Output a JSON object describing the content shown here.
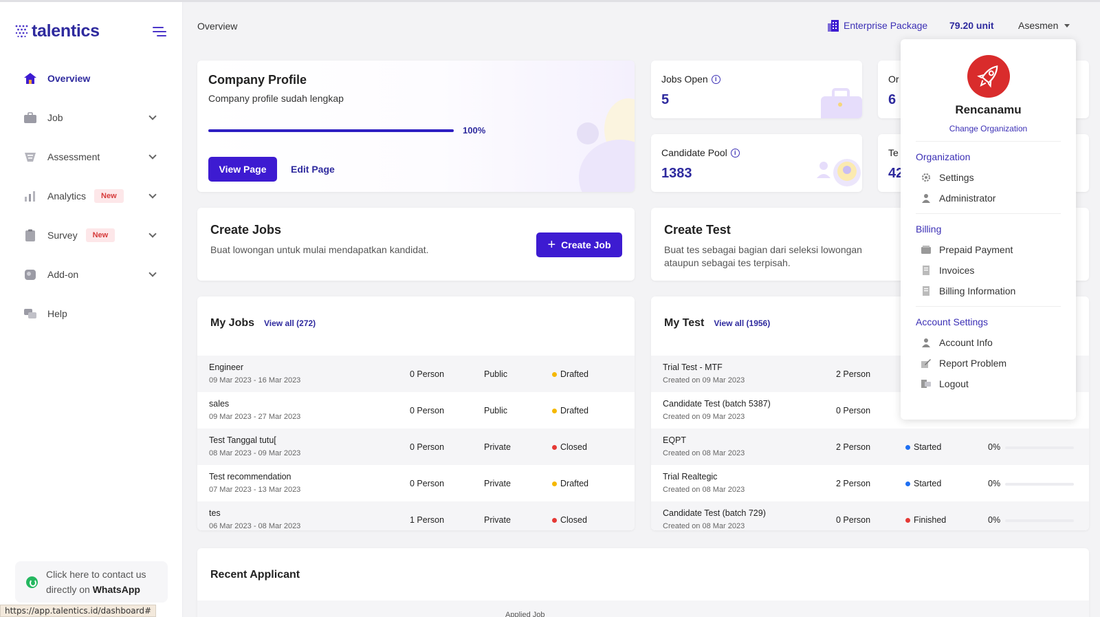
{
  "app": {
    "brand": "talentics"
  },
  "status_url": "https://app.talentics.id/dashboard#",
  "header": {
    "page_title": "Overview",
    "package": "Enterprise Package",
    "units": "79.20 unit",
    "user_menu": "Asesmen"
  },
  "sidebar": {
    "items": [
      {
        "label": "Overview",
        "icon": "home-icon",
        "active": true
      },
      {
        "label": "Job",
        "icon": "briefcase-icon"
      },
      {
        "label": "Assessment",
        "icon": "assessment-icon"
      },
      {
        "label": "Analytics",
        "icon": "analytics-icon",
        "badge": "New"
      },
      {
        "label": "Survey",
        "icon": "clipboard-icon",
        "badge": "New"
      },
      {
        "label": "Add-on",
        "icon": "addon-icon"
      },
      {
        "label": "Help",
        "icon": "help-icon"
      }
    ],
    "whatsapp": {
      "line1": "Click here to contact us",
      "line2_prefix": "directly on ",
      "line2_bold": "WhatsApp"
    }
  },
  "company_profile": {
    "title": "Company Profile",
    "subtitle": "Company profile sudah lengkap",
    "progress": 100,
    "progress_label": "100%",
    "view_button": "View Page",
    "edit_button": "Edit Page"
  },
  "stats": [
    {
      "label": "Jobs Open",
      "value": "5"
    },
    {
      "label": "Or",
      "value": "6"
    },
    {
      "label": "Candidate Pool",
      "value": "1383"
    },
    {
      "label": "Te",
      "value": "42"
    }
  ],
  "create_jobs": {
    "title": "Create Jobs",
    "desc": "Buat lowongan untuk mulai mendapatkan kandidat.",
    "button": "Create Job"
  },
  "create_test": {
    "title": "Create Test",
    "desc": "Buat tes sebagai bagian dari seleksi lowongan ataupun sebagai tes terpisah."
  },
  "my_jobs": {
    "title": "My Jobs",
    "view_all": "View all (272)",
    "rows": [
      {
        "name": "Engineer",
        "date": "09 Mar 2023 - 16 Mar 2023",
        "count": "0 Person",
        "visibility": "Public",
        "status": "Drafted",
        "status_color": "#f5b800"
      },
      {
        "name": "sales",
        "date": "09 Mar 2023 - 27 Mar 2023",
        "count": "0 Person",
        "visibility": "Public",
        "status": "Drafted",
        "status_color": "#f5b800"
      },
      {
        "name": "Test Tanggal tutu[",
        "date": "08 Mar 2023 - 09 Mar 2023",
        "count": "0 Person",
        "visibility": "Private",
        "status": "Closed",
        "status_color": "#e53935"
      },
      {
        "name": "Test recommendation",
        "date": "07 Mar 2023 - 13 Mar 2023",
        "count": "0 Person",
        "visibility": "Private",
        "status": "Drafted",
        "status_color": "#f5b800"
      },
      {
        "name": "tes",
        "date": "06 Mar 2023 - 08 Mar 2023",
        "count": "1 Person",
        "visibility": "Private",
        "status": "Closed",
        "status_color": "#e53935"
      }
    ]
  },
  "my_test": {
    "title": "My Test",
    "view_all": "View all (1956)",
    "rows": [
      {
        "name": "Trial Test - MTF",
        "date": "Created on 09 Mar 2023",
        "count": "2 Person",
        "status": "",
        "pct": ""
      },
      {
        "name": "Candidate Test (batch 5387)",
        "date": "Created on 09 Mar 2023",
        "count": "0 Person",
        "status": "",
        "pct": ""
      },
      {
        "name": "EQPT",
        "date": "Created on 08 Mar 2023",
        "count": "2 Person",
        "status": "Started",
        "status_color": "#1e6ff2",
        "pct": "0%"
      },
      {
        "name": "Trial Realtegic",
        "date": "Created on 08 Mar 2023",
        "count": "2 Person",
        "status": "Started",
        "status_color": "#1e6ff2",
        "pct": "0%"
      },
      {
        "name": "Candidate Test (batch 729)",
        "date": "Created on 08 Mar 2023",
        "count": "0 Person",
        "status": "Finished",
        "status_color": "#e53935",
        "pct": "0%"
      }
    ]
  },
  "recent_applicant": {
    "title": "Recent Applicant",
    "column": "Applied Job"
  },
  "dropdown": {
    "org_name": "Rencanamu",
    "change_org": "Change Organization",
    "sections": [
      {
        "title": "Organization",
        "items": [
          {
            "label": "Settings",
            "icon": "gear-icon"
          },
          {
            "label": "Administrator",
            "icon": "user-icon"
          }
        ]
      },
      {
        "title": "Billing",
        "items": [
          {
            "label": "Prepaid Payment",
            "icon": "wallet-icon"
          },
          {
            "label": "Invoices",
            "icon": "receipt-icon"
          },
          {
            "label": "Billing Information",
            "icon": "receipt-icon"
          }
        ]
      },
      {
        "title": "Account Settings",
        "items": [
          {
            "label": "Account Info",
            "icon": "user-icon"
          },
          {
            "label": "Report Problem",
            "icon": "edit-icon"
          },
          {
            "label": "Logout",
            "icon": "logout-icon"
          }
        ]
      }
    ]
  },
  "colors": {
    "brand": "#2e2a9e",
    "primary_button": "#3d1bd1",
    "drafted": "#f5b800",
    "closed": "#e53935",
    "started": "#1e6ff2"
  }
}
